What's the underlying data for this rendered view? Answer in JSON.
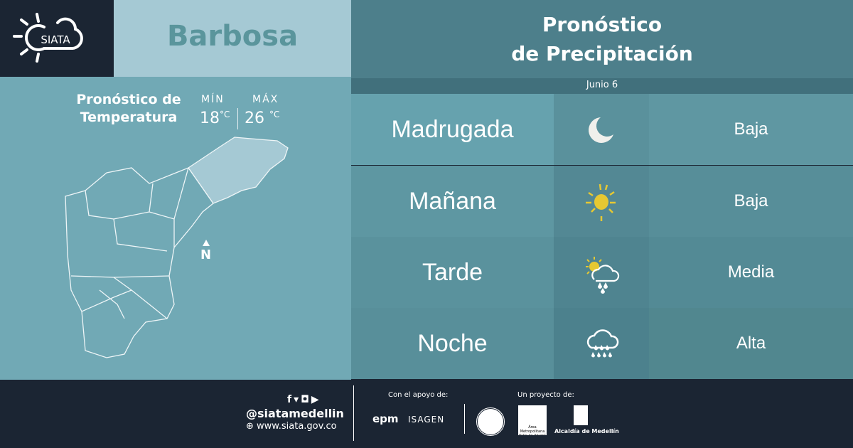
{
  "brand": {
    "logo_text": "SIATA"
  },
  "location": "Barbosa",
  "temperature": {
    "title_line1": "Pronóstico de",
    "title_line2": "Temperatura",
    "min_label": "MÍN",
    "max_label": "MÁX",
    "min": "18",
    "max": "26",
    "unit": "°C"
  },
  "map": {
    "north_label": "N"
  },
  "forecast": {
    "title_line1": "Pronóstico",
    "title_line2": "de Precipitación",
    "date": "Junio 6",
    "periods": [
      {
        "name": "Madrugada",
        "icon": "moon-icon",
        "level": "Baja"
      },
      {
        "name": "Mañana",
        "icon": "sun-icon",
        "level": "Baja"
      },
      {
        "name": "Tarde",
        "icon": "partly-cloudy-rain-icon",
        "level": "Media"
      },
      {
        "name": "Noche",
        "icon": "heavy-rain-icon",
        "level": "Alta"
      }
    ]
  },
  "footer": {
    "handle": "@siatamedellin",
    "website": "www.siata.gov.co",
    "support_label": "Con el apoyo de:",
    "project_label": "Un proyecto de:",
    "sponsors": [
      "epm",
      "ISAGEN"
    ],
    "partners": [
      "Área Metropolitana Valle de Aburrá",
      "Alcaldía de Medellín"
    ]
  },
  "colors": {
    "dark": "#1b2533",
    "sun": "#e6c832",
    "moon": "#f0f0ec"
  }
}
